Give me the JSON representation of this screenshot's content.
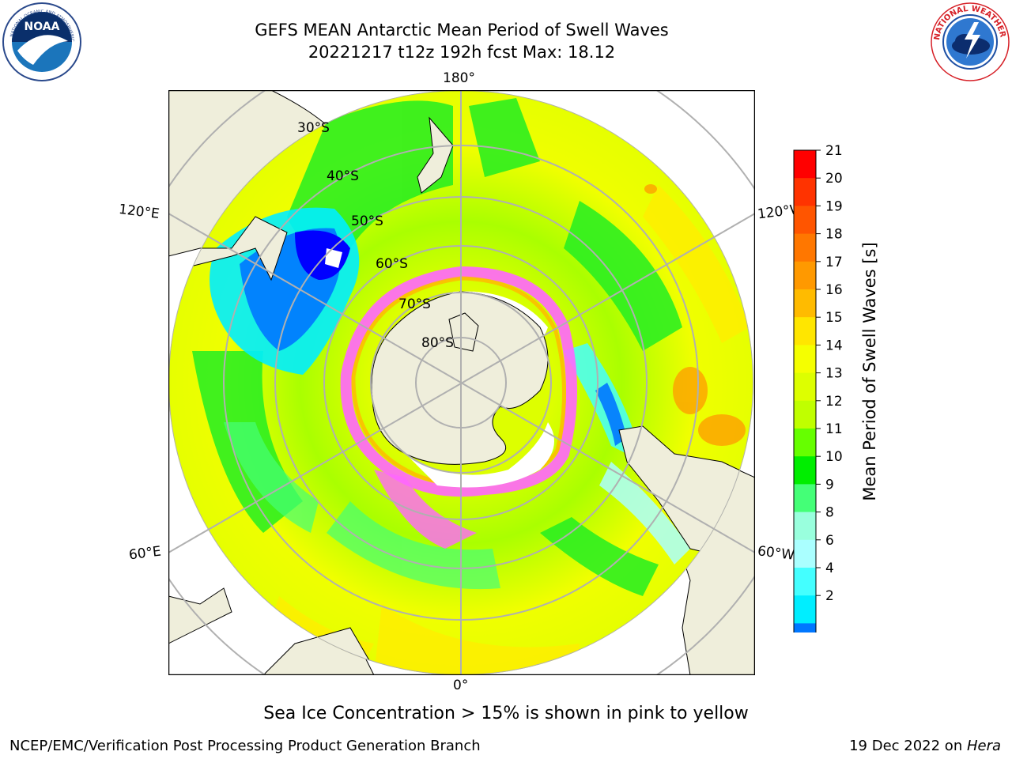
{
  "header": {
    "title_line1": "GEFS MEAN Antarctic Mean Period of Swell Waves",
    "title_line2": "20221217 t12z 192h fcst   Max: 18.12"
  },
  "logos": {
    "left": {
      "icon": "noaa-logo-icon",
      "text": "NOAA"
    },
    "right": {
      "icon": "nws-logo-icon",
      "text": "NATIONAL WEATHER SERVICE"
    }
  },
  "map": {
    "longitude_labels": [
      "180°",
      "120°E",
      "120°W",
      "60°E",
      "60°W",
      "0°"
    ],
    "latitude_labels": [
      "30°S",
      "40°S",
      "50°S",
      "60°S",
      "70°S",
      "80°S"
    ],
    "colors": {
      "land": "#efeedb",
      "ice": "#ff66ff",
      "grid": "#b0b0b0"
    }
  },
  "colorbar": {
    "label": "Mean Period of Swell Waves [s]",
    "ticks": [
      "21",
      "20",
      "19",
      "18",
      "17",
      "16",
      "15",
      "14",
      "13",
      "12",
      "11",
      "10",
      "9",
      "8",
      "6",
      "4",
      "2"
    ],
    "colors": [
      "#ff0000",
      "#ff3300",
      "#ff5500",
      "#ff7700",
      "#ff9900",
      "#ffbb00",
      "#ffe600",
      "#f5ff00",
      "#ddff00",
      "#c0ff00",
      "#66ff00",
      "#00ee00",
      "#44ff77",
      "#99ffdd",
      "#aaffff",
      "#44ffff",
      "#00eeff",
      "#0077ff"
    ],
    "extend_color": "#0000ff"
  },
  "caption": "Sea Ice Concentration > 15% is shown in pink to yellow",
  "footer": {
    "left": "NCEP/EMC/Verification Post Processing Product Generation Branch",
    "right_date": "19 Dec 2022 on ",
    "right_machine": "Hera"
  }
}
